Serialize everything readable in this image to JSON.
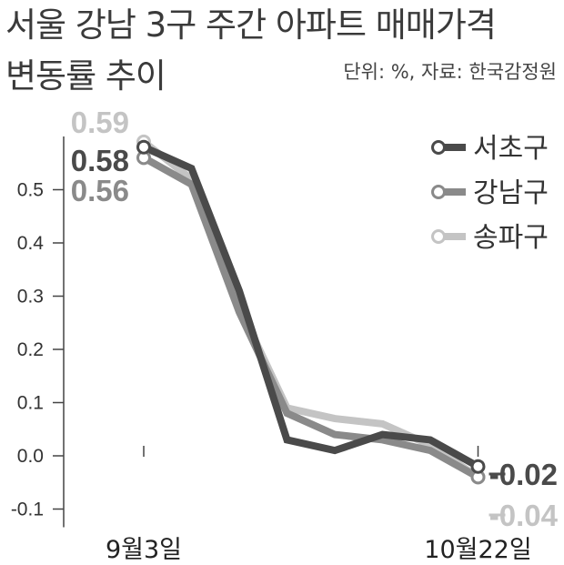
{
  "title_lines": [
    "서울 강남 3구 주간 아파트 매매가격",
    "변동률 추이"
  ],
  "source": "단위: %, 자료: 한국감정원",
  "chart_data": {
    "type": "line",
    "ylim": [
      -0.1,
      0.6
    ],
    "yticks": [
      -0.1,
      0.0,
      0.1,
      0.2,
      0.3,
      0.4,
      0.5
    ],
    "ytick_labels": [
      "-0.1",
      "0.0",
      "0.1",
      "0.2",
      "0.3",
      "0.4",
      "0.5"
    ],
    "x": [
      0,
      1,
      2,
      3,
      4,
      5,
      6,
      7
    ],
    "x_tick_labels": [
      {
        "index": 0,
        "label": "9월3일"
      },
      {
        "index": 7,
        "label": "10월22일"
      }
    ],
    "legend_position": "top-right",
    "series": [
      {
        "name": "서초구",
        "color": "#4a4a4a",
        "values": [
          0.58,
          0.54,
          0.31,
          0.03,
          0.01,
          0.04,
          0.03,
          -0.02
        ],
        "start_label": "0.58",
        "end_label": "-0.02"
      },
      {
        "name": "강남구",
        "color": "#8a8a8a",
        "values": [
          0.56,
          0.51,
          0.27,
          0.08,
          0.04,
          0.03,
          0.01,
          -0.04
        ],
        "start_label": "0.56",
        "end_label": ""
      },
      {
        "name": "송파구",
        "color": "#c4c4c4",
        "values": [
          0.59,
          0.52,
          0.28,
          0.09,
          0.07,
          0.06,
          0.02,
          -0.04
        ],
        "start_label": "0.59",
        "end_label": "-0.04"
      }
    ]
  }
}
